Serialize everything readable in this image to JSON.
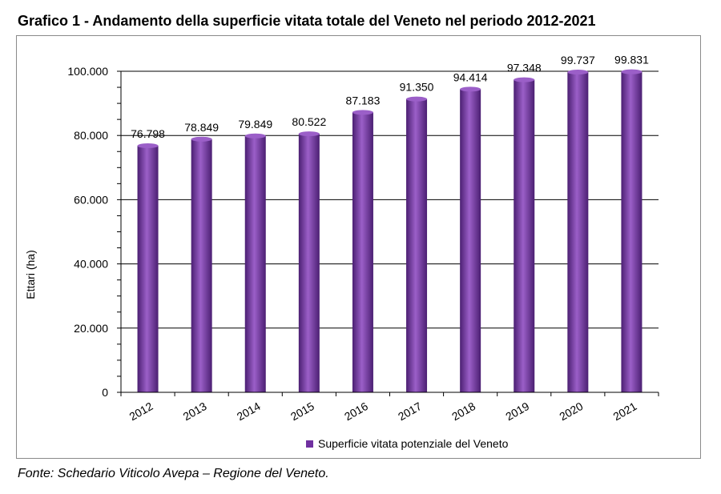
{
  "figure_title": "Grafico 1 - Andamento della superficie vitata totale del Veneto nel periodo 2012-2021",
  "source": "Fonte: Schedario Viticolo Avepa – Regione del Veneto.",
  "colors": {
    "bar_fill": "#7030a0",
    "bar_light": "#9b5fc8",
    "bar_dark": "#4b1f72",
    "gridline": "#000000",
    "frame": "#8a8a8a"
  },
  "chart_data": {
    "type": "bar",
    "title": "",
    "xlabel": "",
    "ylabel": "Ettari (ha)",
    "ylim": [
      0,
      100000
    ],
    "yticks": [
      0,
      20000,
      40000,
      60000,
      80000,
      100000
    ],
    "ytick_labels": [
      "0",
      "20.000",
      "40.000",
      "60.000",
      "80.000",
      "100.000"
    ],
    "grid": true,
    "legend": "bottom-center",
    "categories": [
      "2012",
      "2013",
      "2014",
      "2015",
      "2016",
      "2017",
      "2018",
      "2019",
      "2020",
      "2021"
    ],
    "series": [
      {
        "name": "Superficie vitata potenziale del Veneto",
        "values": [
          76798,
          78849,
          79849,
          80522,
          87183,
          91350,
          94414,
          97348,
          99737,
          99831
        ],
        "data_labels": [
          "76.798",
          "78.849",
          "79.849",
          "80.522",
          "87.183",
          "91.350",
          "94.414",
          "97.348",
          "99.737",
          "99.831"
        ]
      }
    ]
  }
}
